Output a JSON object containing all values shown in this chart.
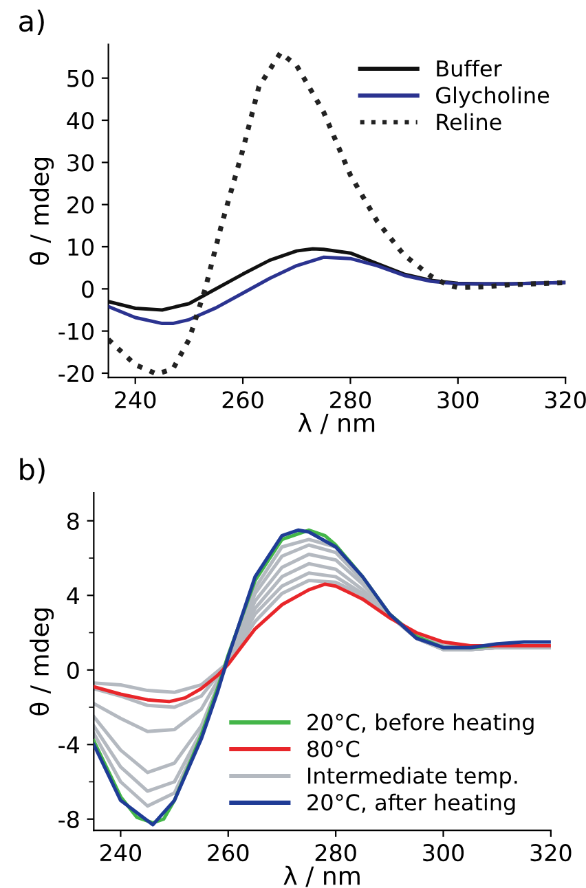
{
  "chart_data": [
    {
      "type": "line",
      "annotations": [
        "a)"
      ],
      "xlabel": "λ / nm",
      "ylabel": "θ / mdeg",
      "xlim": [
        235,
        320
      ],
      "xticks": [
        240,
        260,
        280,
        300,
        320
      ],
      "ylim": [
        -21,
        58
      ],
      "yticks": [
        -20,
        -10,
        0,
        10,
        20,
        30,
        40,
        50
      ],
      "grid": false,
      "legend": "top right",
      "series": [
        {
          "name": "Buffer",
          "color": "#111111",
          "line_style": "solid",
          "x": [
            235,
            240,
            245,
            250,
            255,
            260,
            265,
            270,
            273,
            275,
            280,
            285,
            290,
            295,
            300,
            305,
            310,
            320
          ],
          "values": [
            -3,
            -4.6,
            -5,
            -3.5,
            0,
            3.5,
            6.8,
            9,
            9.5,
            9.4,
            8.5,
            6,
            3.5,
            2,
            1.3,
            1.2,
            1.2,
            1.5
          ]
        },
        {
          "name": "Glycholine",
          "color": "#2b3390",
          "line_style": "solid",
          "x": [
            235,
            240,
            245,
            247,
            250,
            255,
            260,
            265,
            270,
            275,
            280,
            285,
            290,
            295,
            300,
            310,
            320
          ],
          "values": [
            -4.2,
            -6.8,
            -8.2,
            -8.2,
            -7.3,
            -4.5,
            -1,
            2.5,
            5.5,
            7.5,
            7.2,
            5.5,
            3.2,
            1.8,
            1.2,
            1.2,
            1.5
          ]
        },
        {
          "name": "Reline",
          "color": "#222222",
          "line_style": "dotted",
          "x": [
            235,
            240,
            244,
            247,
            250,
            253,
            256,
            260,
            263,
            267,
            270,
            275,
            280,
            285,
            290,
            295,
            298,
            300,
            305,
            310,
            320
          ],
          "values": [
            -12,
            -18,
            -20.2,
            -19,
            -12,
            0,
            15,
            33,
            48,
            56,
            53,
            42,
            27,
            16,
            8,
            3,
            1,
            0.3,
            0.5,
            1,
            1.5
          ]
        }
      ]
    },
    {
      "type": "line",
      "annotations": [
        "b)"
      ],
      "xlabel": "λ / nm",
      "ylabel": "θ / mdeg",
      "xlim": [
        235,
        320
      ],
      "xticks": [
        240,
        260,
        280,
        300,
        320
      ],
      "ylim": [
        -8.6,
        9.5
      ],
      "yticks": [
        -8,
        {
          "value": -6,
          "label": null
        },
        -4,
        {
          "value": -2,
          "label": null
        },
        0,
        {
          "value": 2,
          "label": null
        },
        4,
        {
          "value": 6,
          "label": null
        },
        8
      ],
      "grid": false,
      "legend": "bottom right",
      "series": [
        {
          "color": "#b4b9c0",
          "x": [
            235,
            240,
            245,
            250,
            255,
            260,
            265,
            270,
            275,
            280,
            285,
            290,
            295,
            300,
            305,
            310,
            320
          ],
          "values": [
            -0.7,
            -0.8,
            -1.1,
            -1.2,
            -0.8,
            0.4,
            2.6,
            4.1,
            4.8,
            4.7,
            4,
            2.9,
            1.9,
            1.3,
            1.2,
            1.2,
            1.2
          ]
        },
        {
          "color": "#b4b9c0",
          "x": [
            235,
            240,
            245,
            250,
            255,
            260,
            265,
            270,
            275,
            280,
            285,
            290,
            295,
            300,
            305,
            310,
            320
          ],
          "values": [
            -1,
            -1.4,
            -1.9,
            -2,
            -1.4,
            0.4,
            3,
            4.5,
            5.2,
            5,
            4.1,
            2.9,
            1.8,
            1.2,
            1.1,
            1.2,
            1.2
          ]
        },
        {
          "color": "#b4b9c0",
          "x": [
            235,
            240,
            245,
            250,
            255,
            260,
            265,
            270,
            275,
            280,
            285,
            290,
            295,
            300,
            305,
            310,
            320
          ],
          "values": [
            -1.8,
            -2.6,
            -3.3,
            -3.2,
            -2.1,
            0.4,
            3.3,
            5,
            5.7,
            5.4,
            4.3,
            2.9,
            1.7,
            1.2,
            1.1,
            1.2,
            1.2
          ]
        },
        {
          "color": "#b4b9c0",
          "x": [
            235,
            240,
            245,
            250,
            255,
            260,
            265,
            270,
            275,
            280,
            285,
            290,
            295,
            300,
            305,
            310,
            320
          ],
          "values": [
            -2.5,
            -4.3,
            -5.5,
            -5,
            -3,
            0.5,
            3.7,
            5.5,
            6.2,
            5.9,
            4.6,
            3,
            1.7,
            1.1,
            1.1,
            1.2,
            1.2
          ]
        },
        {
          "color": "#b4b9c0",
          "x": [
            235,
            240,
            245,
            250,
            255,
            260,
            265,
            270,
            275,
            280,
            285,
            290,
            295,
            300,
            305,
            310,
            320
          ],
          "values": [
            -3,
            -5.2,
            -6.5,
            -6,
            -3.3,
            0.6,
            4.1,
            6.1,
            6.7,
            6.3,
            4.8,
            3,
            1.7,
            1.1,
            1.1,
            1.2,
            1.2
          ]
        },
        {
          "name": "20°C, before heating",
          "color": "#44b649",
          "x": [
            235,
            240,
            243,
            246,
            248,
            250,
            255,
            258,
            260,
            265,
            270,
            275,
            278,
            280,
            285,
            290,
            295,
            300,
            305,
            310
          ],
          "values": [
            -3.8,
            -6.8,
            -7.9,
            -8.2,
            -8,
            -7,
            -3.5,
            -1,
            0.8,
            4.8,
            7,
            7.5,
            7.2,
            6.7,
            5,
            3,
            1.8,
            1.2,
            1.2,
            1.3
          ]
        },
        {
          "name": "80°C",
          "color": "#e8262a",
          "x": [
            235,
            240,
            245,
            249,
            252,
            255,
            258,
            260,
            265,
            270,
            275,
            278,
            280,
            285,
            290,
            295,
            300,
            305,
            310,
            320
          ],
          "values": [
            -0.9,
            -1.3,
            -1.6,
            -1.7,
            -1.5,
            -1,
            -0.3,
            0.3,
            2.2,
            3.5,
            4.3,
            4.6,
            4.5,
            3.8,
            2.8,
            2,
            1.5,
            1.3,
            1.3,
            1.3
          ]
        },
        {
          "name": "Intermediate temp.",
          "color": "#b4b9c0",
          "x": [
            235,
            240,
            245,
            250,
            255,
            260,
            265,
            270,
            275,
            280,
            285,
            290,
            295,
            300,
            305,
            310,
            320
          ],
          "values": [
            -3.4,
            -6,
            -7.3,
            -6.6,
            -3.5,
            0.7,
            4.4,
            6.6,
            7,
            6.6,
            4.9,
            3,
            1.7,
            1.1,
            1.1,
            1.2,
            1.2
          ]
        },
        {
          "name": "20°C, after heating",
          "color": "#1f3c96",
          "x": [
            235,
            240,
            246,
            250,
            255,
            258,
            260,
            265,
            270,
            273,
            275,
            280,
            285,
            290,
            295,
            300,
            305,
            310,
            315,
            320
          ],
          "values": [
            -4,
            -7,
            -8.3,
            -7,
            -3.7,
            -1.2,
            0.7,
            5,
            7.2,
            7.5,
            7.4,
            6.6,
            5,
            3,
            1.7,
            1.2,
            1.2,
            1.4,
            1.5,
            1.5
          ]
        }
      ]
    }
  ]
}
